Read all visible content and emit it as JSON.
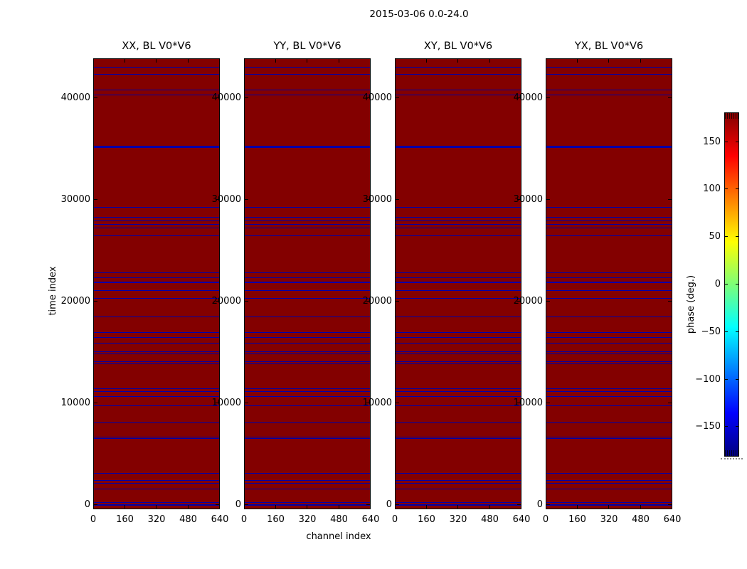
{
  "chart_data": {
    "type": "heatmap",
    "title": "2015-03-06 0.0-24.0",
    "xlabel": "channel index",
    "ylabel": "time index",
    "panels": [
      {
        "title": "XX, BL V0*V6"
      },
      {
        "title": "YY, BL V0*V6"
      },
      {
        "title": "XY, BL V0*V6"
      },
      {
        "title": "YX, BL V0*V6"
      }
    ],
    "x_axis": {
      "ticks": [
        0,
        160,
        320,
        480,
        640
      ],
      "range": [
        0,
        640
      ]
    },
    "y_axis": {
      "ticks": [
        0,
        10000,
        20000,
        30000,
        40000
      ],
      "range": [
        0,
        44000
      ]
    },
    "grid": false,
    "background_phase_deg": 180,
    "stripe_phase_deg": -180,
    "note": "all four panels show identical horizontal stripe patterns",
    "stripes": [
      {
        "time": 42980,
        "weight": 1
      },
      {
        "time": 42300,
        "weight": 1
      },
      {
        "time": 40700,
        "weight": 1
      },
      {
        "time": 40210,
        "weight": 1
      },
      {
        "time": 35150,
        "weight": 3
      },
      {
        "time": 29210,
        "weight": 1
      },
      {
        "time": 28230,
        "weight": 1
      },
      {
        "time": 27880,
        "weight": 1
      },
      {
        "time": 27530,
        "weight": 1
      },
      {
        "time": 27180,
        "weight": 1
      },
      {
        "time": 26410,
        "weight": 1
      },
      {
        "time": 22780,
        "weight": 1
      },
      {
        "time": 22290,
        "weight": 1
      },
      {
        "time": 21840,
        "weight": 2
      },
      {
        "time": 21030,
        "weight": 1
      },
      {
        "time": 20270,
        "weight": 1
      },
      {
        "time": 18450,
        "weight": 1
      },
      {
        "time": 16910,
        "weight": 1
      },
      {
        "time": 16420,
        "weight": 1
      },
      {
        "time": 15860,
        "weight": 1
      },
      {
        "time": 15020,
        "weight": 1
      },
      {
        "time": 14810,
        "weight": 1
      },
      {
        "time": 14050,
        "weight": 1
      },
      {
        "time": 13840,
        "weight": 1
      },
      {
        "time": 11390,
        "weight": 1
      },
      {
        "time": 11110,
        "weight": 1
      },
      {
        "time": 10620,
        "weight": 1
      },
      {
        "time": 9710,
        "weight": 1
      },
      {
        "time": 8040,
        "weight": 1
      },
      {
        "time": 6640,
        "weight": 1
      },
      {
        "time": 6500,
        "weight": 1
      },
      {
        "time": 3070,
        "weight": 1
      },
      {
        "time": 2380,
        "weight": 1
      },
      {
        "time": 2100,
        "weight": 1
      },
      {
        "time": 1540,
        "weight": 1
      },
      {
        "time": 210,
        "weight": 1
      },
      {
        "time": 0,
        "weight": 2
      }
    ],
    "colorbar": {
      "label": "phase (deg.)",
      "tick_labels": [
        "150",
        "100",
        "50",
        "0",
        "−50",
        "−100",
        "−150"
      ],
      "tick_values": [
        150,
        100,
        50,
        0,
        -50,
        -100,
        -150
      ],
      "vmin": -180,
      "vmax": 180,
      "colormap": "jet",
      "stops": [
        {
          "pos": 0,
          "color": "#000080"
        },
        {
          "pos": 12.5,
          "color": "#0000ff"
        },
        {
          "pos": 37.5,
          "color": "#00ffff"
        },
        {
          "pos": 50,
          "color": "#7dff78"
        },
        {
          "pos": 62.5,
          "color": "#ffff00"
        },
        {
          "pos": 87.5,
          "color": "#ff0000"
        },
        {
          "pos": 100,
          "color": "#830000"
        }
      ]
    }
  },
  "colors": {
    "panel_bg": "#830000",
    "stripe": "#0000a8",
    "frame": "#000000",
    "text": "#000000",
    "background": "#ffffff"
  }
}
